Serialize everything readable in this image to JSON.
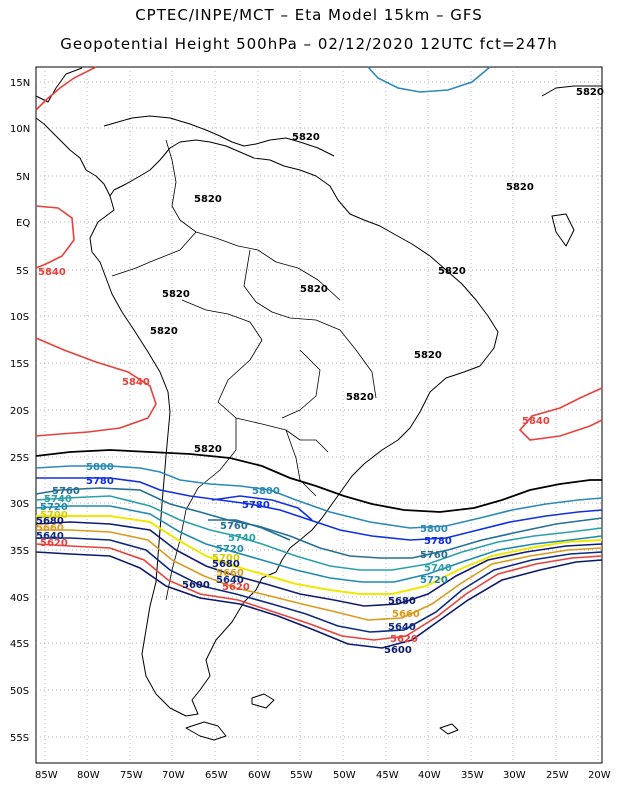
{
  "header": {
    "title_line1": "CPTEC/INPE/MCT –  Eta Model 15km – GFS",
    "title_line2": "Geopotential Height 500hPa – 02/12/2020 12UTC fct=247h"
  },
  "axes": {
    "lat_ticks": [
      "15N",
      "10N",
      "5N",
      "EQ",
      "5S",
      "10S",
      "15S",
      "20S",
      "25S",
      "30S",
      "35S",
      "40S",
      "45S",
      "50S",
      "55S"
    ],
    "lon_ticks": [
      "85W",
      "80W",
      "75W",
      "70W",
      "65W",
      "60W",
      "55W",
      "50W",
      "45W",
      "40W",
      "35W",
      "30W",
      "25W",
      "20W"
    ],
    "lat_range": [
      17,
      -59
    ],
    "lon_range": [
      -86,
      -20
    ],
    "grid": "dotted"
  },
  "contour_levels": [
    {
      "value": "5600",
      "color": "#0a1a6e"
    },
    {
      "value": "5620",
      "color": "#e8403a"
    },
    {
      "value": "5640",
      "color": "#0d2a80"
    },
    {
      "value": "5660",
      "color": "#d99a1e"
    },
    {
      "value": "5680",
      "color": "#101c70"
    },
    {
      "value": "5700",
      "color": "#f0e800"
    },
    {
      "value": "5720",
      "color": "#1f8ab0"
    },
    {
      "value": "5740",
      "color": "#2aa0a8"
    },
    {
      "value": "5760",
      "color": "#246f95"
    },
    {
      "value": "5780",
      "color": "#1030e0"
    },
    {
      "value": "5800",
      "color": "#2a8ab8"
    },
    {
      "value": "5820",
      "color": "#000000"
    },
    {
      "value": "5840",
      "color": "#e8403a"
    }
  ],
  "labels": {
    "l5820_a": "5820",
    "l5820_b": "5820",
    "l5820_c": "5820",
    "l5820_d": "5820",
    "l5820_e": "5820",
    "l5820_f": "5820",
    "l5820_g": "5820",
    "l5820_h": "5820",
    "l5820_i": "5820",
    "l5820_j": "5820",
    "l5820_k": "5820",
    "l5840_a": "5840",
    "l5840_b": "5840",
    "l5840_c": "5840",
    "l5800_a": "5800",
    "l5800_b": "5800",
    "l5800_c": "5800",
    "l5780_a": "5780",
    "l5780_b": "5780",
    "l5780_c": "5780",
    "l5760_a": "5760",
    "l5760_b": "5760",
    "l5760_c": "5760",
    "l5740_a": "5740",
    "l5740_b": "5740",
    "l5740_c": "5740",
    "l5720_a": "5720",
    "l5720_b": "5720",
    "l5720_c": "5720",
    "l5700_a": "5700",
    "l5700_b": "5700",
    "l5680_a": "5680",
    "l5680_b": "5680",
    "l5680_c": "5680",
    "l5660_a": "5660",
    "l5660_b": "5660",
    "l5660_c": "5660",
    "l5640_a": "5640",
    "l5640_b": "5640",
    "l5640_c": "5640",
    "l5620_a": "5620",
    "l5620_b": "5620",
    "l5620_c": "5620",
    "l5600_a": "5600",
    "l5600_b": "5600"
  }
}
